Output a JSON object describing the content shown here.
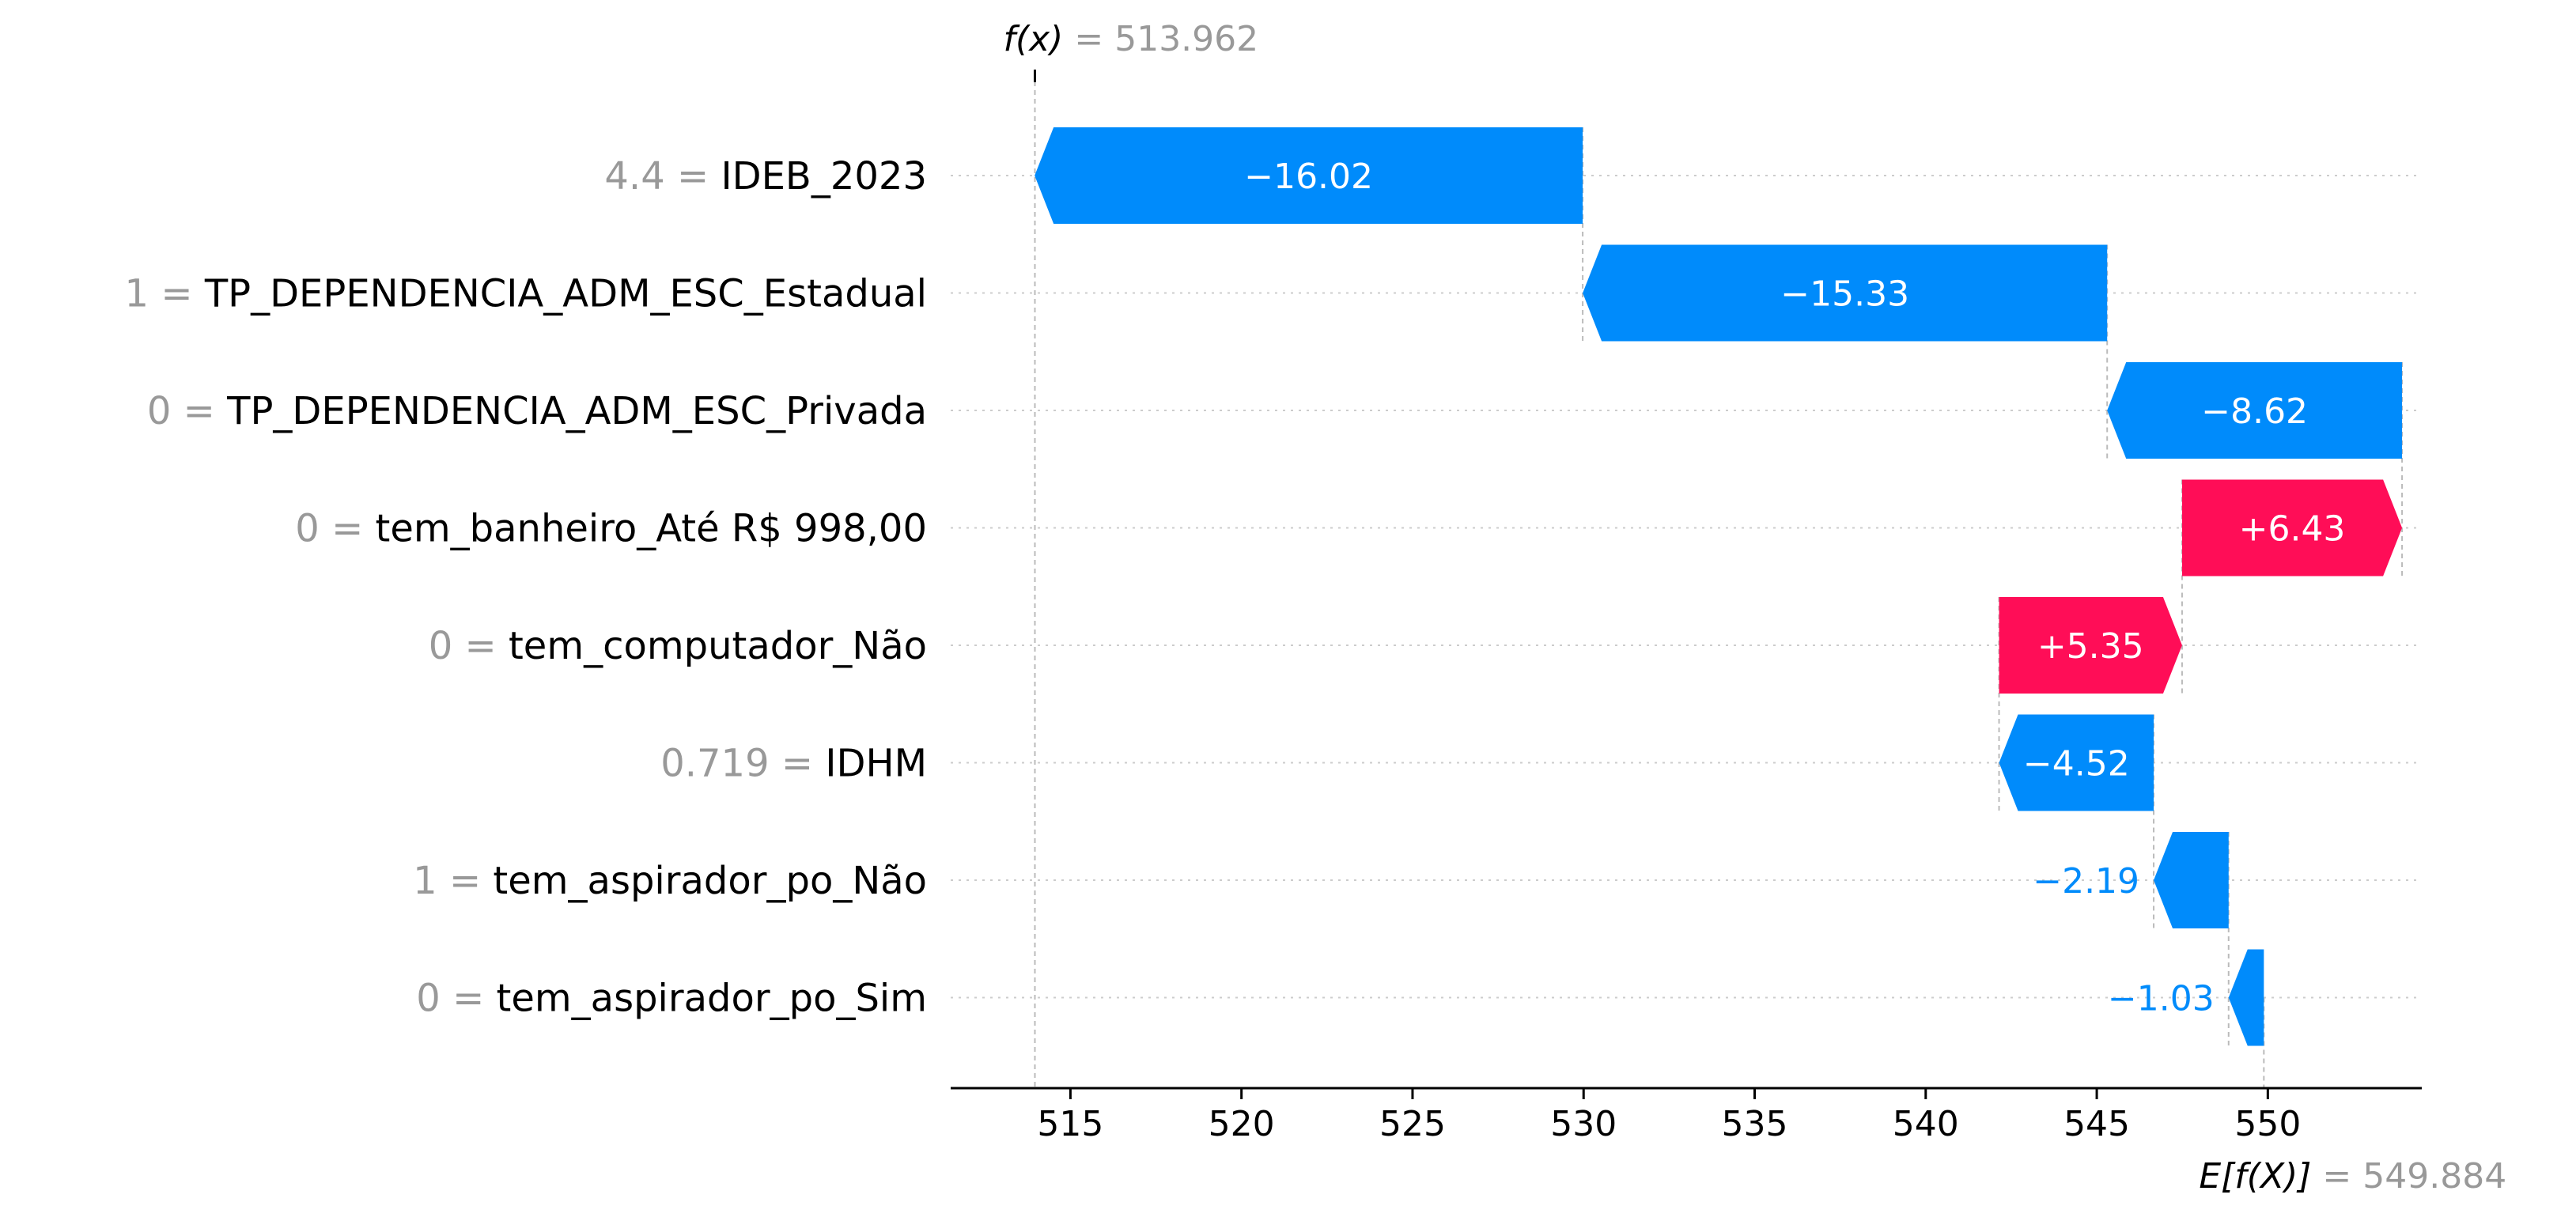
{
  "chart_data": {
    "type": "waterfall",
    "fx": {
      "label": "f(x)",
      "value_text": "= 513.962",
      "value": 513.962
    },
    "expected": {
      "label": "E[f(X)]",
      "value_text": "= 549.884",
      "value": 549.884
    },
    "xlim": [
      511.5,
      554.5
    ],
    "xticks": [
      515,
      520,
      525,
      530,
      535,
      540,
      545,
      550
    ],
    "colors": {
      "positive": "#ff0d57",
      "negative": "#008bfb",
      "feature_value": "#999999"
    },
    "features": [
      {
        "feature_value": "4.4",
        "eq": "=",
        "name": "IDEB_2023",
        "contribution": -16.02,
        "label": "−16.02"
      },
      {
        "feature_value": "1",
        "eq": "=",
        "name": "TP_DEPENDENCIA_ADM_ESC_Estadual",
        "contribution": -15.33,
        "label": "−15.33"
      },
      {
        "feature_value": "0",
        "eq": "=",
        "name": "TP_DEPENDENCIA_ADM_ESC_Privada",
        "contribution": -8.62,
        "label": "−8.62"
      },
      {
        "feature_value": "0",
        "eq": "=",
        "name": "tem_banheiro_Até R$ 998,00",
        "contribution": 6.43,
        "label": "+6.43"
      },
      {
        "feature_value": "0",
        "eq": "=",
        "name": "tem_computador_Não",
        "contribution": 5.35,
        "label": "+5.35"
      },
      {
        "feature_value": "0.719",
        "eq": "=",
        "name": "IDHM",
        "contribution": -4.52,
        "label": "−4.52"
      },
      {
        "feature_value": "1",
        "eq": "=",
        "name": "tem_aspirador_po_Não",
        "contribution": -2.19,
        "label": "−2.19"
      },
      {
        "feature_value": "0",
        "eq": "=",
        "name": "tem_aspirador_po_Sim",
        "contribution": -1.03,
        "label": "−1.03"
      }
    ]
  }
}
